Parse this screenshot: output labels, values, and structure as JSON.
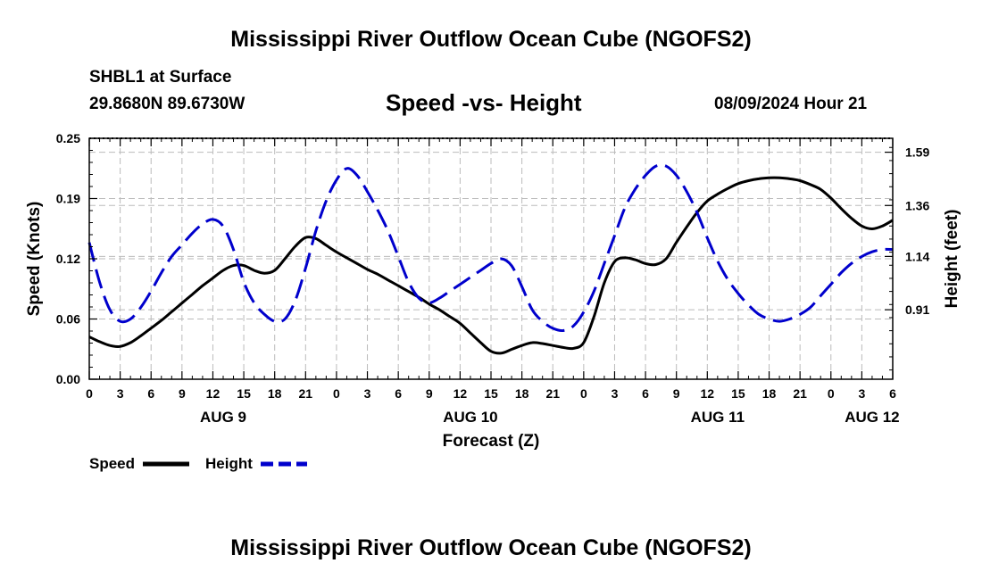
{
  "header": {
    "title": "Mississippi River Outflow Ocean Cube (NGOFS2)",
    "station": "SHBL1 at Surface",
    "coords": "29.8680N  89.6730W",
    "subtitle": "Speed -vs- Height",
    "timestamp": "08/09/2024 Hour 21"
  },
  "footer": {
    "title": "Mississippi River Outflow Ocean Cube (NGOFS2)"
  },
  "chart_data": {
    "type": "line",
    "title": "Speed -vs- Height",
    "xlabel": "Forecast (Z)",
    "ylabel": "Speed (Knots)",
    "y2label": "Height (feet)",
    "xlim": [
      0,
      78
    ],
    "ylim": [
      0,
      0.25
    ],
    "y2lim": [
      0.61,
      1.65
    ],
    "grid": true,
    "x_tick_labels": [
      "0",
      "3",
      "6",
      "9",
      "12",
      "15",
      "18",
      "21",
      "0",
      "3",
      "6",
      "9",
      "12",
      "15",
      "18",
      "21",
      "0",
      "3",
      "6",
      "9",
      "12",
      "15",
      "18",
      "21",
      "0",
      "3",
      "6"
    ],
    "y_tick_labels": [
      "0.00",
      "0.06",
      "0.12",
      "0.19",
      "0.25"
    ],
    "y2_tick_labels": [
      "0.91",
      "1.14",
      "1.36",
      "1.59"
    ],
    "date_labels": [
      {
        "hour": 13,
        "label": "AUG 9"
      },
      {
        "hour": 37,
        "label": "AUG 10"
      },
      {
        "hour": 61,
        "label": "AUG 11"
      },
      {
        "hour": 76,
        "label": "AUG 12"
      }
    ],
    "series": [
      {
        "name": "Speed",
        "axis": "left",
        "color": "#000000",
        "style": "solid",
        "x": [
          0,
          1,
          2,
          3,
          4,
          5,
          6,
          7,
          8,
          9,
          10,
          11,
          12,
          13,
          14,
          15,
          16,
          17,
          18,
          19,
          20,
          21,
          22,
          23,
          24,
          25,
          26,
          27,
          28,
          29,
          30,
          31,
          32,
          33,
          34,
          35,
          36,
          37,
          38,
          39,
          40,
          41,
          42,
          43,
          44,
          45,
          46,
          47,
          48,
          49,
          50,
          51,
          52,
          53,
          54,
          55,
          56,
          57,
          58,
          59,
          60,
          61,
          62,
          63,
          64,
          65,
          66,
          67,
          68,
          69,
          70,
          71,
          72,
          73,
          74,
          75,
          76,
          77,
          78
        ],
        "values": [
          0.044,
          0.039,
          0.035,
          0.034,
          0.038,
          0.045,
          0.053,
          0.061,
          0.07,
          0.079,
          0.088,
          0.097,
          0.105,
          0.113,
          0.118,
          0.118,
          0.113,
          0.11,
          0.113,
          0.125,
          0.138,
          0.147,
          0.146,
          0.139,
          0.132,
          0.126,
          0.12,
          0.114,
          0.109,
          0.103,
          0.097,
          0.091,
          0.085,
          0.078,
          0.072,
          0.065,
          0.058,
          0.048,
          0.038,
          0.029,
          0.027,
          0.031,
          0.035,
          0.038,
          0.037,
          0.035,
          0.033,
          0.032,
          0.038,
          0.065,
          0.1,
          0.122,
          0.126,
          0.124,
          0.12,
          0.119,
          0.125,
          0.142,
          0.158,
          0.173,
          0.185,
          0.192,
          0.198,
          0.203,
          0.206,
          0.208,
          0.209,
          0.209,
          0.208,
          0.206,
          0.202,
          0.197,
          0.188,
          0.177,
          0.167,
          0.159,
          0.156,
          0.159,
          0.165
        ]
      },
      {
        "name": "Height",
        "axis": "right",
        "color": "#0000cc",
        "style": "dashed",
        "x": [
          0,
          1,
          2,
          3,
          4,
          5,
          6,
          7,
          8,
          9,
          10,
          11,
          12,
          13,
          14,
          15,
          16,
          17,
          18,
          19,
          20,
          21,
          22,
          23,
          24,
          25,
          26,
          27,
          28,
          29,
          30,
          31,
          32,
          33,
          34,
          35,
          36,
          37,
          38,
          39,
          40,
          41,
          42,
          43,
          44,
          45,
          46,
          47,
          48,
          49,
          50,
          51,
          52,
          53,
          54,
          55,
          56,
          57,
          58,
          59,
          60,
          61,
          62,
          63,
          64,
          65,
          66,
          67,
          68,
          69,
          70,
          71,
          72,
          73,
          74,
          75,
          76,
          77,
          78
        ],
        "values": [
          1.2,
          1.03,
          0.91,
          0.86,
          0.87,
          0.92,
          0.99,
          1.07,
          1.14,
          1.19,
          1.24,
          1.28,
          1.3,
          1.27,
          1.17,
          1.03,
          0.94,
          0.89,
          0.86,
          0.87,
          0.95,
          1.09,
          1.25,
          1.38,
          1.47,
          1.52,
          1.49,
          1.42,
          1.34,
          1.25,
          1.14,
          1.03,
          0.96,
          0.94,
          0.96,
          0.99,
          1.02,
          1.05,
          1.08,
          1.11,
          1.13,
          1.1,
          1.01,
          0.91,
          0.86,
          0.83,
          0.82,
          0.84,
          0.9,
          0.99,
          1.11,
          1.23,
          1.35,
          1.43,
          1.49,
          1.53,
          1.53,
          1.49,
          1.42,
          1.33,
          1.22,
          1.12,
          1.04,
          0.98,
          0.93,
          0.89,
          0.87,
          0.86,
          0.87,
          0.89,
          0.92,
          0.97,
          1.02,
          1.07,
          1.11,
          1.14,
          1.16,
          1.17,
          1.17
        ]
      }
    ],
    "legend": [
      {
        "label": "Speed",
        "color": "#000000",
        "style": "solid"
      },
      {
        "label": "Height",
        "color": "#0000cc",
        "style": "dashed"
      }
    ]
  }
}
